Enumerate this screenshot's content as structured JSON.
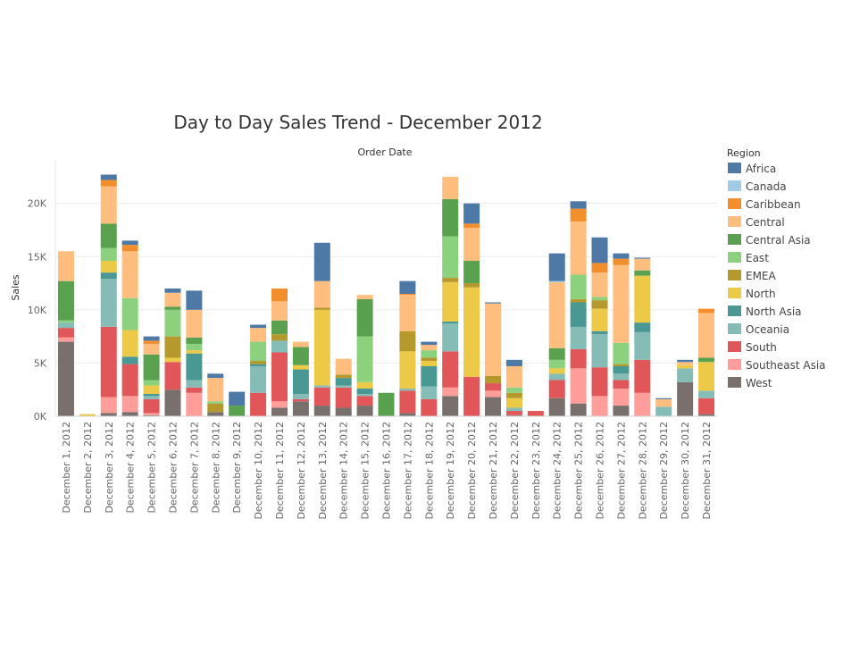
{
  "chart_data": {
    "type": "bar",
    "stacked": true,
    "title": "Day to Day Sales Trend - December 2012",
    "xlabel": "Order Date",
    "ylabel": "Sales",
    "ylim": [
      0,
      24000
    ],
    "yticks": [
      0,
      5000,
      10000,
      15000,
      20000
    ],
    "ytick_labels": [
      "0K",
      "5K",
      "10K",
      "15K",
      "20K"
    ],
    "grid": true,
    "legend": {
      "title": "Region",
      "position": "right"
    },
    "categories": [
      "December 1, 2012",
      "December 2, 2012",
      "December 3, 2012",
      "December 4, 2012",
      "December 5, 2012",
      "December 6, 2012",
      "December 7, 2012",
      "December 8, 2012",
      "December 9, 2012",
      "December 10, 2012",
      "December 11, 2012",
      "December 12, 2012",
      "December 13, 2012",
      "December 14, 2012",
      "December 15, 2012",
      "December 16, 2012",
      "December 17, 2012",
      "December 18, 2012",
      "December 19, 2012",
      "December 20, 2012",
      "December 21, 2012",
      "December 22, 2012",
      "December 23, 2012",
      "December 24, 2012",
      "December 25, 2012",
      "December 26, 2012",
      "December 27, 2012",
      "December 28, 2012",
      "December 29, 2012",
      "December 30, 2012",
      "December 31, 2012"
    ],
    "series": [
      {
        "name": "West",
        "color": "#79706e",
        "values": [
          7000,
          0,
          300,
          400,
          100,
          2500,
          0,
          400,
          0,
          0,
          800,
          1400,
          1000,
          800,
          1000,
          0,
          300,
          0,
          1900,
          0,
          1800,
          100,
          0,
          1700,
          1200,
          0,
          1000,
          0,
          0,
          3200,
          200
        ]
      },
      {
        "name": "Southeast Asia",
        "color": "#ff9d9a",
        "values": [
          400,
          0,
          1500,
          1500,
          200,
          0,
          2200,
          0,
          0,
          0,
          600,
          0,
          0,
          0,
          0,
          0,
          0,
          0,
          800,
          0,
          600,
          0,
          0,
          0,
          3300,
          1900,
          1600,
          2200,
          0,
          0,
          0
        ]
      },
      {
        "name": "South",
        "color": "#e15759",
        "values": [
          900,
          0,
          6600,
          3000,
          1300,
          2600,
          500,
          0,
          0,
          2200,
          4600,
          200,
          1700,
          1900,
          900,
          0,
          2100,
          1600,
          3400,
          3700,
          700,
          400,
          500,
          1700,
          1800,
          2700,
          800,
          3100,
          0,
          0,
          1500
        ]
      },
      {
        "name": "Oceania",
        "color": "#86bcb6",
        "values": [
          500,
          0,
          4500,
          0,
          300,
          0,
          700,
          0,
          0,
          2500,
          1100,
          500,
          200,
          200,
          200,
          0,
          200,
          1200,
          2600,
          0,
          0,
          300,
          0,
          600,
          2100,
          3100,
          600,
          2600,
          900,
          1300,
          700
        ]
      },
      {
        "name": "North Asia",
        "color": "#499894",
        "values": [
          0,
          0,
          600,
          700,
          200,
          0,
          2500,
          0,
          0,
          200,
          0,
          2300,
          0,
          700,
          500,
          0,
          0,
          1900,
          200,
          0,
          0,
          0,
          0,
          0,
          2300,
          300,
          700,
          900,
          0,
          0,
          0
        ]
      },
      {
        "name": "North",
        "color": "#edc948",
        "values": [
          0,
          200,
          1100,
          2500,
          800,
          400,
          300,
          0,
          0,
          0,
          0,
          400,
          7100,
          0,
          600,
          0,
          3500,
          500,
          3700,
          8400,
          0,
          900,
          0,
          500,
          0,
          2100,
          0,
          4400,
          0,
          300,
          2700
        ]
      },
      {
        "name": "EMEA",
        "color": "#b6992d",
        "values": [
          0,
          0,
          0,
          0,
          0,
          2000,
          0,
          800,
          0,
          300,
          600,
          0,
          200,
          300,
          0,
          0,
          1900,
          300,
          400,
          400,
          700,
          500,
          0,
          0,
          300,
          800,
          200,
          0,
          0,
          0,
          0
        ]
      },
      {
        "name": "East",
        "color": "#8cd17d",
        "values": [
          200,
          0,
          1200,
          3000,
          500,
          2500,
          600,
          200,
          0,
          1800,
          0,
          0,
          0,
          0,
          4300,
          0,
          0,
          700,
          3900,
          0,
          0,
          500,
          0,
          800,
          2300,
          300,
          2000,
          0,
          0,
          0,
          0
        ]
      },
      {
        "name": "Central Asia",
        "color": "#59a14f",
        "values": [
          3700,
          0,
          2300,
          0,
          2400,
          300,
          600,
          0,
          1000,
          0,
          1300,
          1700,
          0,
          0,
          3500,
          2200,
          0,
          0,
          3500,
          2100,
          0,
          0,
          0,
          1100,
          0,
          0,
          0,
          500,
          0,
          0,
          400
        ]
      },
      {
        "name": "Central",
        "color": "#ffbe7d",
        "values": [
          2800,
          0,
          3500,
          4400,
          1000,
          1300,
          2600,
          2200,
          0,
          1300,
          1800,
          500,
          2500,
          1500,
          400,
          0,
          3400,
          500,
          2100,
          3100,
          6800,
          2000,
          0,
          6200,
          5000,
          2300,
          7300,
          1100,
          700,
          300,
          4200
        ]
      },
      {
        "name": "Caribbean",
        "color": "#f28e2b",
        "values": [
          0,
          0,
          600,
          600,
          300,
          0,
          0,
          0,
          0,
          0,
          1200,
          0,
          0,
          0,
          0,
          0,
          100,
          0,
          0,
          400,
          0,
          0,
          0,
          0,
          1200,
          900,
          600,
          0,
          0,
          0,
          400
        ]
      },
      {
        "name": "Canada",
        "color": "#a0cbe8",
        "values": [
          0,
          0,
          0,
          0,
          0,
          0,
          0,
          0,
          0,
          0,
          0,
          0,
          0,
          0,
          0,
          0,
          0,
          0,
          0,
          0,
          0,
          0,
          0,
          100,
          0,
          0,
          0,
          0,
          0,
          0,
          0
        ]
      },
      {
        "name": "Africa",
        "color": "#4e79a7",
        "values": [
          0,
          0,
          500,
          400,
          400,
          400,
          1800,
          400,
          1300,
          300,
          0,
          0,
          3600,
          0,
          0,
          0,
          1200,
          300,
          0,
          1900,
          100,
          600,
          0,
          2600,
          700,
          2400,
          500,
          100,
          100,
          200,
          0
        ]
      }
    ],
    "legend_order": [
      "Africa",
      "Canada",
      "Caribbean",
      "Central",
      "Central Asia",
      "East",
      "EMEA",
      "North",
      "North Asia",
      "Oceania",
      "South",
      "Southeast Asia",
      "West"
    ]
  }
}
